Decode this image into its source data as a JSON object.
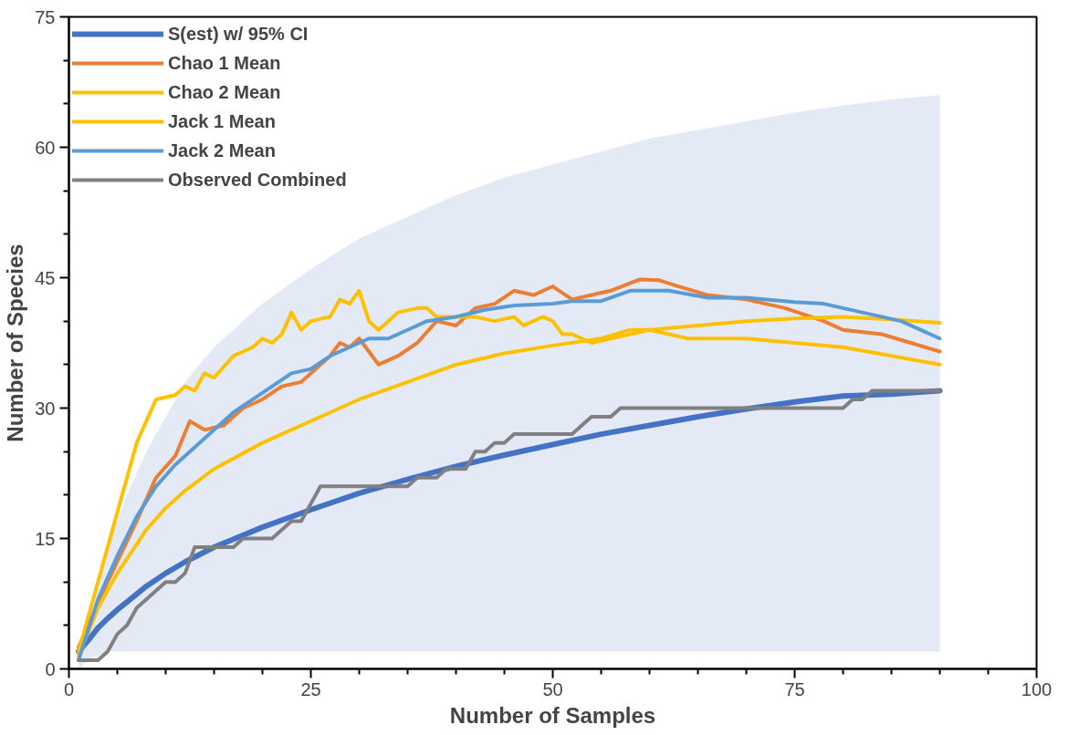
{
  "chart_data": {
    "type": "line",
    "xlabel": "Number of Samples",
    "ylabel": "Number of Species",
    "xlim": [
      0,
      100
    ],
    "ylim": [
      0,
      75
    ],
    "xticks": [
      0,
      {
        "value": 5,
        "label": null
      },
      {
        "value": 10,
        "label": null
      },
      {
        "value": 15,
        "label": null
      },
      {
        "value": 20,
        "label": null
      },
      25,
      {
        "value": 30,
        "label": null
      },
      {
        "value": 35,
        "label": null
      },
      {
        "value": 40,
        "label": null
      },
      {
        "value": 45,
        "label": null
      },
      50,
      {
        "value": 55,
        "label": null
      },
      {
        "value": 60,
        "label": null
      },
      {
        "value": 65,
        "label": null
      },
      {
        "value": 70,
        "label": null
      },
      75,
      {
        "value": 80,
        "label": null
      },
      {
        "value": 85,
        "label": null
      },
      {
        "value": 90,
        "label": null
      },
      {
        "value": 95,
        "label": null
      },
      100
    ],
    "yticks": [
      0,
      {
        "value": 5,
        "label": null
      },
      {
        "value": 10,
        "label": null
      },
      15,
      {
        "value": 20,
        "label": null
      },
      {
        "value": 25,
        "label": null
      },
      30,
      {
        "value": 35,
        "label": null
      },
      {
        "value": 40,
        "label": null
      },
      45,
      {
        "value": 50,
        "label": null
      },
      {
        "value": 55,
        "label": null
      },
      60,
      {
        "value": 65,
        "label": null
      },
      {
        "value": 70,
        "label": null
      },
      75
    ],
    "grid": false,
    "legend": "top left",
    "line_style": "solid",
    "marker": "none",
    "series": [
      {
        "name": "S(est) w/ 95% CI",
        "color": "#4472c4",
        "x": [
          1,
          2,
          3,
          4,
          5,
          6,
          8,
          10,
          12,
          15,
          20,
          25,
          30,
          35,
          40,
          45,
          50,
          55,
          60,
          65,
          70,
          75,
          80,
          85,
          90
        ],
        "values": [
          2,
          3.3,
          4.7,
          5.8,
          6.8,
          7.7,
          9.5,
          11,
          12.3,
          14,
          16.3,
          18.3,
          20.2,
          21.8,
          23.3,
          24.6,
          25.8,
          27,
          28,
          29,
          29.9,
          30.7,
          31.4,
          31.6,
          32
        ],
        "lower": [
          0,
          1,
          1.5,
          2,
          2,
          2,
          2,
          2,
          2,
          2,
          2,
          2,
          2,
          2,
          2,
          2,
          2,
          2,
          2,
          2,
          2,
          2,
          2,
          2,
          2
        ],
        "upper": [
          3,
          6,
          10,
          14,
          17,
          20,
          25,
          29,
          33,
          37,
          42,
          46,
          49.5,
          52,
          54.5,
          56.5,
          58,
          59.5,
          61,
          62,
          63,
          64,
          64.8,
          65.5,
          66
        ]
      },
      {
        "name": "Chao 1 Mean",
        "color": "#ed7d31",
        "x": [
          1,
          4,
          7,
          9,
          11,
          12.5,
          14,
          16,
          18,
          20,
          22,
          24,
          26,
          27,
          28,
          29,
          30,
          31,
          32,
          34,
          36,
          38,
          40,
          42,
          44,
          46,
          48,
          50,
          52,
          54,
          56,
          59,
          61,
          63,
          66,
          70,
          74,
          78,
          80,
          84,
          87,
          90
        ],
        "values": [
          2.5,
          10,
          17,
          22,
          24.5,
          28.5,
          27.5,
          28,
          30,
          31,
          32.5,
          33,
          35,
          36,
          37.5,
          37,
          38,
          36.5,
          35,
          36,
          37.5,
          40,
          39.5,
          41.5,
          42,
          43.5,
          43,
          44,
          42.5,
          43,
          43.5,
          44.8,
          44.7,
          44,
          43,
          42.5,
          41.5,
          40,
          39,
          38.5,
          37.5,
          36.5
        ]
      },
      {
        "name": "Chao 2 Mean",
        "color": "#ffc000",
        "x": [
          1,
          3,
          5,
          7,
          9,
          11,
          12,
          13,
          14,
          15,
          17,
          19,
          20,
          21,
          22,
          23,
          24,
          25,
          27,
          28,
          29,
          30,
          31,
          32,
          33,
          34,
          36,
          37,
          38,
          40,
          42,
          44,
          46,
          47,
          49,
          50,
          51,
          52,
          54,
          58,
          60,
          64,
          70,
          75,
          80,
          85,
          90
        ],
        "values": [
          2,
          10,
          18,
          26,
          31,
          31.5,
          32.5,
          32,
          34,
          33.5,
          36,
          37,
          38,
          37.5,
          38.5,
          41,
          39,
          40,
          40.5,
          42.5,
          42,
          43.5,
          40,
          39,
          40,
          41,
          41.5,
          41.5,
          40.5,
          40.5,
          40.5,
          40,
          40.5,
          39.5,
          40.5,
          40,
          38.5,
          38.5,
          37.5,
          38.5,
          39,
          38,
          38,
          37.5,
          37,
          36,
          35
        ]
      },
      {
        "name": "Jack 1 Mean",
        "color": "#ffc000",
        "x": [
          1,
          3,
          5,
          8,
          10,
          12,
          15,
          20,
          25,
          30,
          35,
          40,
          45,
          50,
          55,
          58,
          60,
          65,
          70,
          75,
          80,
          85,
          90
        ],
        "values": [
          1.5,
          7,
          11,
          16,
          18.5,
          20.5,
          23,
          26,
          28.5,
          31,
          33,
          35,
          36.3,
          37.2,
          38,
          39,
          39,
          39.5,
          40,
          40.3,
          40.5,
          40.2,
          39.8
        ]
      },
      {
        "name": "Jack 2 Mean",
        "color": "#5b9bd5",
        "x": [
          1,
          3,
          5,
          7,
          9,
          11,
          13,
          15,
          17,
          19,
          21,
          23,
          25,
          27,
          29,
          31,
          33,
          35,
          37,
          40,
          43,
          46,
          50,
          52,
          55,
          58,
          62,
          66,
          70,
          75,
          78,
          82,
          86,
          90
        ],
        "values": [
          1,
          8,
          13,
          17.5,
          21,
          23.5,
          25.5,
          27.5,
          29.5,
          31,
          32.5,
          34,
          34.5,
          36,
          37,
          38,
          38,
          39,
          40,
          40.5,
          41.3,
          41.8,
          42,
          42.3,
          42.3,
          43.5,
          43.5,
          42.7,
          42.7,
          42.2,
          42,
          41,
          40,
          38
        ]
      },
      {
        "name": "Observed Combined",
        "color": "#808080",
        "x": [
          1,
          3,
          4,
          5,
          6,
          7,
          8,
          9,
          10,
          11,
          12,
          13,
          17,
          18,
          21,
          22,
          23,
          24,
          25,
          26,
          35,
          36,
          38,
          39,
          41,
          42,
          43,
          44,
          45,
          46,
          52,
          53,
          54,
          56,
          57,
          80,
          81,
          82,
          83,
          90
        ],
        "values": [
          1,
          1,
          2,
          4,
          5,
          7,
          8,
          9,
          10,
          10,
          11,
          14,
          14,
          15,
          15,
          16,
          17,
          17,
          19,
          21,
          21,
          22,
          22,
          23,
          23,
          25,
          25,
          26,
          26,
          27,
          27,
          28,
          29,
          29,
          30,
          30,
          31,
          31,
          32,
          32
        ]
      }
    ]
  }
}
